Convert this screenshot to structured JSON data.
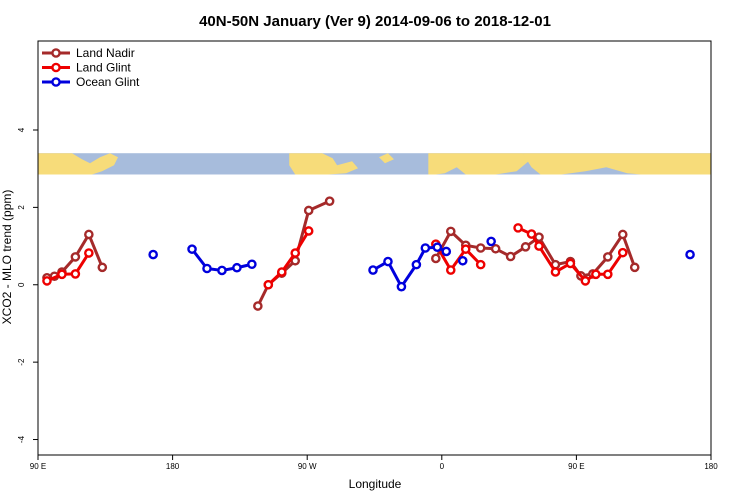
{
  "chart_data": {
    "type": "line",
    "title": "40N-50N January (Ver 9)   2014-09-06 to 2018-12-01",
    "xlabel": "Longitude",
    "ylabel": "XCO2 - MLO trend (ppm)",
    "xlim": [
      90,
      540
    ],
    "ylim": [
      -4.4,
      6.3
    ],
    "x_ticks": [
      {
        "value": 90,
        "label": "90 E"
      },
      {
        "value": 180,
        "label": "180"
      },
      {
        "value": 270,
        "label": "90 W"
      },
      {
        "value": 360,
        "label": "0"
      },
      {
        "value": 450,
        "label": "90 E"
      },
      {
        "value": 540,
        "label": "180"
      }
    ],
    "y_ticks": [
      {
        "value": -4,
        "label": "-4"
      },
      {
        "value": -2,
        "label": "-2"
      },
      {
        "value": 0,
        "label": "0"
      },
      {
        "value": 2,
        "label": "2"
      },
      {
        "value": 4,
        "label": "4"
      }
    ],
    "legend_position": "top-left",
    "map_strip": {
      "y_from": 2.85,
      "y_to": 3.4,
      "land_color": "#f7dc7a",
      "ocean_color": "#a7bcdc"
    },
    "series": [
      {
        "name": "Land Nadir",
        "color": "#a52a2a",
        "segments": [
          [
            [
              96,
              0.18
            ],
            [
              101,
              0.22
            ],
            [
              106,
              0.33
            ],
            [
              115,
              0.72
            ],
            [
              124,
              1.3
            ],
            [
              133,
              0.45
            ]
          ],
          [
            [
              237,
              -0.55
            ],
            [
              244,
              0.0
            ],
            [
              253,
              0.3
            ],
            [
              262,
              0.62
            ],
            [
              271,
              1.92
            ],
            [
              285,
              2.16
            ]
          ],
          [
            [
              356,
              0.68
            ],
            [
              366,
              1.38
            ],
            [
              376,
              1.02
            ],
            [
              386,
              0.95
            ],
            [
              396,
              0.93
            ],
            [
              406,
              0.73
            ],
            [
              416,
              0.98
            ],
            [
              425,
              1.23
            ],
            [
              436,
              0.52
            ],
            [
              446,
              0.6
            ],
            [
              453,
              0.23
            ],
            [
              461,
              0.28
            ],
            [
              471,
              0.72
            ],
            [
              481,
              1.3
            ],
            [
              489,
              0.45
            ]
          ]
        ]
      },
      {
        "name": "Land Glint",
        "color": "#ee0000",
        "segments": [
          [
            [
              96,
              0.1
            ],
            [
              106,
              0.27
            ],
            [
              115,
              0.28
            ],
            [
              124,
              0.82
            ]
          ],
          [
            [
              244,
              0.0
            ],
            [
              253,
              0.33
            ],
            [
              262,
              0.82
            ],
            [
              271,
              1.39
            ]
          ],
          [
            [
              356,
              1.05
            ],
            [
              366,
              0.38
            ],
            [
              376,
              0.92
            ],
            [
              386,
              0.52
            ]
          ],
          [
            [
              411,
              1.47
            ],
            [
              420,
              1.31
            ],
            [
              425,
              1.0
            ],
            [
              436,
              0.33
            ],
            [
              446,
              0.55
            ],
            [
              456,
              0.1
            ],
            [
              463,
              0.27
            ],
            [
              471,
              0.27
            ],
            [
              481,
              0.83
            ]
          ]
        ]
      },
      {
        "name": "Ocean Glint",
        "color": "#0000dd",
        "segments": [
          [
            [
              167,
              0.78
            ]
          ],
          [
            [
              193,
              0.92
            ],
            [
              203,
              0.42
            ],
            [
              213,
              0.37
            ],
            [
              223,
              0.44
            ],
            [
              233,
              0.53
            ]
          ],
          [
            [
              314,
              0.38
            ],
            [
              324,
              0.6
            ],
            [
              333,
              -0.05
            ],
            [
              343,
              0.52
            ],
            [
              349,
              0.95
            ],
            [
              357,
              0.97
            ],
            [
              363,
              0.86
            ]
          ],
          [
            [
              374,
              0.62
            ]
          ],
          [
            [
              393,
              1.12
            ]
          ],
          [
            [
              526,
              0.78
            ]
          ]
        ]
      }
    ]
  }
}
